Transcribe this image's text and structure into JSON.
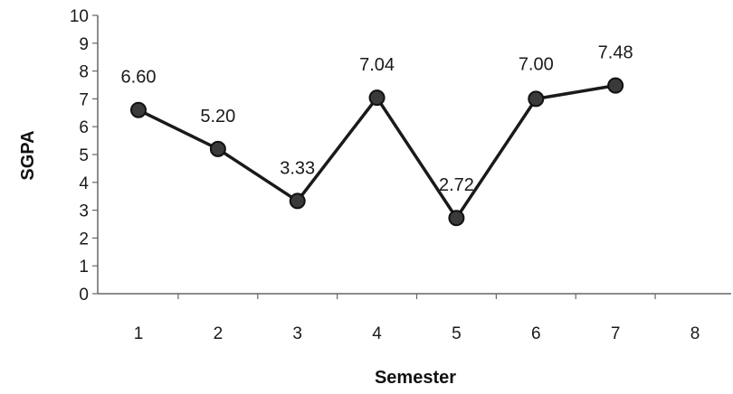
{
  "chart_data": {
    "type": "line",
    "x": [
      1,
      2,
      3,
      4,
      5,
      6,
      7
    ],
    "x_ticks": [
      "1",
      "2",
      "3",
      "4",
      "5",
      "6",
      "7",
      "8"
    ],
    "y_ticks": [
      "0",
      "1",
      "2",
      "3",
      "4",
      "5",
      "6",
      "7",
      "8",
      "9",
      "10"
    ],
    "series": [
      {
        "values": [
          6.6,
          5.2,
          3.33,
          7.04,
          2.72,
          7.0,
          7.48
        ],
        "data_labels": [
          "6.60",
          "5.20",
          "3.33",
          "7.04",
          "2.72",
          "7.00",
          "7.48"
        ]
      }
    ],
    "xlabel": "Semester",
    "ylabel": "SGPA",
    "xlim": [
      1,
      8
    ],
    "ylim": [
      0,
      10
    ],
    "grid": false,
    "legend": "none",
    "line_color": "#1a1a1a",
    "marker_color": "#3a3a3a"
  }
}
